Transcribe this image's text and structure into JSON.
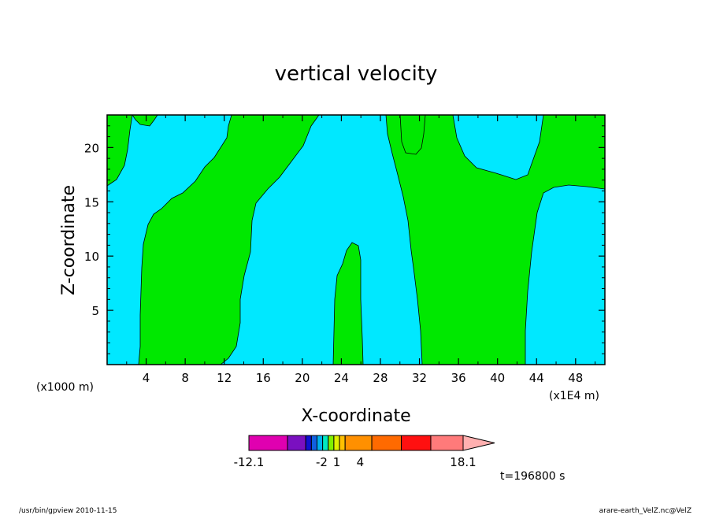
{
  "chart_data": {
    "type": "heatmap",
    "title": "vertical velocity",
    "xlabel": "X-coordinate",
    "ylabel": "Z-coordinate",
    "x_unit_left": "(x1000 m)",
    "x_unit_right": "(x1E4 m)",
    "xlim": [
      0,
      51
    ],
    "ylim": [
      0,
      23
    ],
    "x_ticks": [
      4,
      8,
      12,
      16,
      20,
      24,
      28,
      32,
      36,
      40,
      44,
      48
    ],
    "y_ticks": [
      5,
      10,
      15,
      20
    ],
    "colorbar": {
      "labels": [
        {
          "text": "-12.1",
          "pos": 0
        },
        {
          "text": "-2",
          "pos": 0.34
        },
        {
          "text": "1",
          "pos": 0.41
        },
        {
          "text": "4",
          "pos": 0.52
        },
        {
          "text": "18.1",
          "pos": 1
        }
      ],
      "colors": [
        "#e000b0",
        "#7a10c0",
        "#1010d0",
        "#1060e0",
        "#00b0f0",
        "#00e8c0",
        "#80f000",
        "#e0f000",
        "#ffc000",
        "#ff9000",
        "#ff6a00",
        "#ff1010",
        "#ff7a7a",
        "#ffb0b0"
      ]
    },
    "time_label": "t=196800 s",
    "regions": {
      "background_color": "#00e8ff",
      "positive_color": "#00e800"
    }
  },
  "footer": {
    "left": "/usr/bin/gpview   2010-11-15",
    "right": "arare-earth_VelZ.nc@VelZ"
  }
}
